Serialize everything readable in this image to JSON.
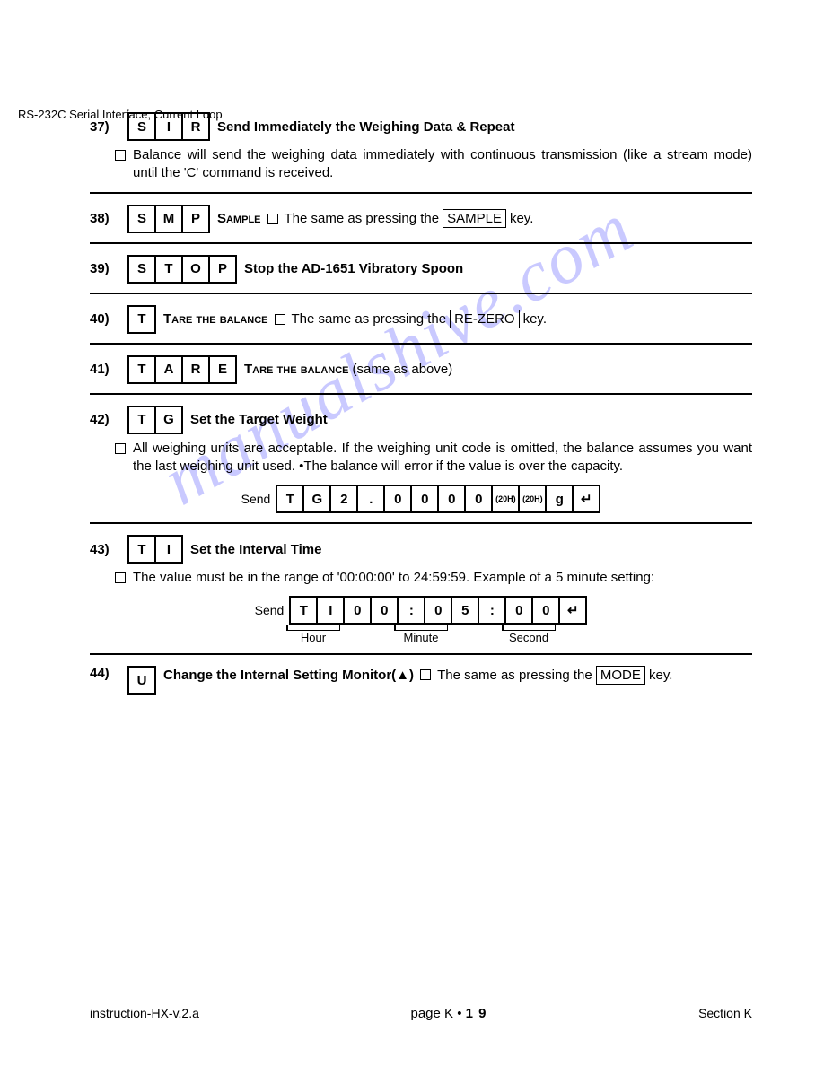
{
  "header": "RS-232C Serial Interface, Current Loop",
  "watermark": "manualshive.com",
  "entries": {
    "e37": {
      "num": "37)",
      "cmd": [
        "S",
        "I",
        "R"
      ],
      "title": "Send Immediately the Weighing Data & Repeat",
      "body": "Balance will send the weighing data immediately with continuous transmission (like a stream mode) until the 'C' command is received."
    },
    "e38": {
      "num": "38)",
      "cmd": [
        "S",
        "M",
        "P"
      ],
      "label": "Sample",
      "text1": "The same as pressing the",
      "key": "SAMPLE",
      "text2": "key."
    },
    "e39": {
      "num": "39)",
      "cmd": [
        "S",
        "T",
        "O",
        "P"
      ],
      "title": "Stop the AD-1651 Vibratory Spoon"
    },
    "e40": {
      "num": "40)",
      "cmd": [
        "T"
      ],
      "label": "Tare the balance",
      "text1": "The same as pressing the",
      "key": "RE-ZERO",
      "text2": "key."
    },
    "e41": {
      "num": "41)",
      "cmd": [
        "T",
        "A",
        "R",
        "E"
      ],
      "label": "Tare the balance",
      "text1": "(same as above)"
    },
    "e42": {
      "num": "42)",
      "cmd": [
        "T",
        "G"
      ],
      "title": "Set the Target Weight",
      "body": "All weighing units are acceptable.  If the weighing unit code is omitted, the balance assumes you want the last weighing unit used. •The balance will error if the value is over the capacity.",
      "sendLabel": "Send",
      "sendCells": [
        "T",
        "G",
        "2",
        ".",
        "0",
        "0",
        "0",
        "0",
        "(20H)",
        "(20H)",
        "g",
        "↵"
      ]
    },
    "e43": {
      "num": "43)",
      "cmd": [
        "T",
        "I"
      ],
      "title": "Set the Interval Time",
      "body": "The value must be in the range of '00:00:00' to 24:59:59.  Example of a 5 minute setting:",
      "sendLabel": "Send",
      "sendCells": [
        "T",
        "I",
        "0",
        "0",
        ":",
        "0",
        "5",
        ":",
        "0",
        "0",
        "↵"
      ],
      "labels": [
        "Hour",
        "Minute",
        "Second"
      ]
    },
    "e44": {
      "num": "44)",
      "cmd": [
        "U"
      ],
      "title": "Change the Internal Setting Monitor(▲)",
      "text1": "The same as pressing the",
      "key": "MODE",
      "text2": "key."
    }
  },
  "footer": {
    "left": "instruction-HX-v.2.a",
    "centerPrefix": "page K • ",
    "centerNum": "1 9",
    "right": "Section K"
  }
}
